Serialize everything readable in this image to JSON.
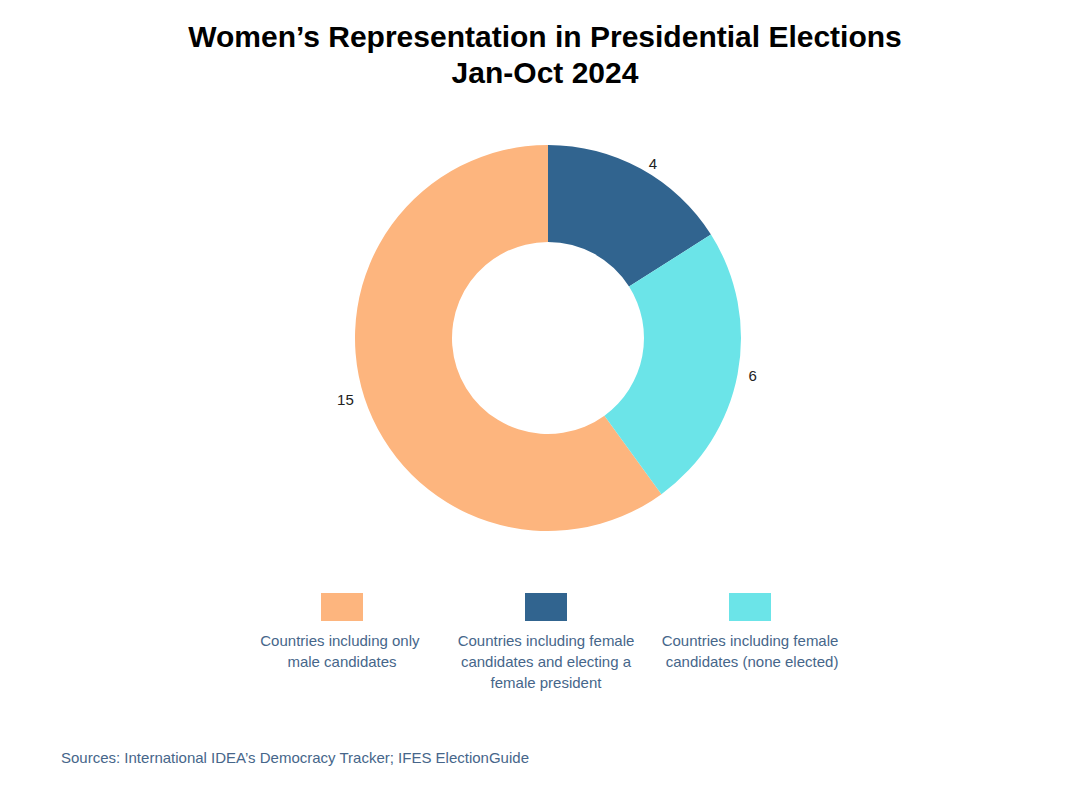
{
  "chart_data": {
    "type": "pie",
    "title": "Women’s Representation in Presidential Elections",
    "subtitle": "Jan-Oct 2024",
    "categories": [
      "Countries including only male candidates",
      "Countries including female candidates and electing a female president",
      "Countries including female candidates (none elected)"
    ],
    "values": [
      15,
      4,
      6
    ],
    "colors": [
      "#fdb57e",
      "#31648f",
      "#6be4e8"
    ],
    "data_labels": true,
    "legend": "bottom",
    "source": "Sources: International IDEA’s Democracy Tracker; IFES ElectionGuide"
  }
}
